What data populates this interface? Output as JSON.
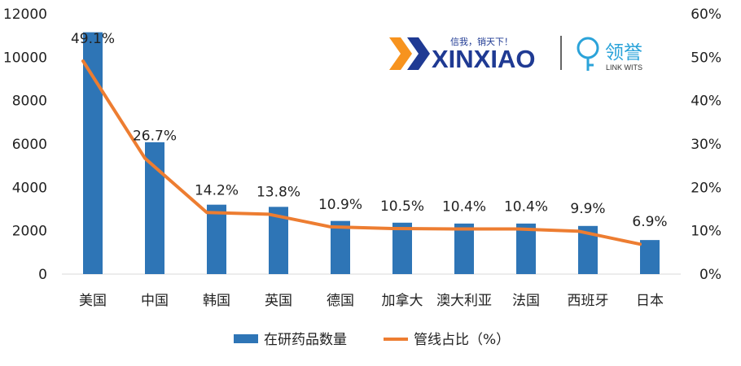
{
  "chart_data": {
    "type": "bar+line",
    "categories": [
      "美国",
      "中国",
      "韩国",
      "英国",
      "德国",
      "加拿大",
      "澳大利亚",
      "法国",
      "西班牙",
      "日本"
    ],
    "series": [
      {
        "name": "在研药品数量",
        "type": "bar",
        "axis": "left",
        "color": "#2E75B6",
        "values": [
          11150,
          6080,
          3200,
          3100,
          2450,
          2370,
          2330,
          2330,
          2220,
          1570
        ]
      },
      {
        "name": "管线占比（%）",
        "type": "line",
        "axis": "right",
        "color": "#ED7D31",
        "values": [
          49.1,
          26.7,
          14.2,
          13.8,
          10.9,
          10.5,
          10.4,
          10.4,
          9.9,
          6.9
        ],
        "data_labels": [
          "49.1%",
          "26.7%",
          "14.2%",
          "13.8%",
          "10.9%",
          "10.5%",
          "10.4%",
          "10.4%",
          "9.9%",
          "6.9%"
        ]
      }
    ],
    "y_left": {
      "ylim": [
        0,
        12000
      ],
      "ticks": [
        0,
        2000,
        4000,
        6000,
        8000,
        10000,
        12000
      ],
      "tick_labels": [
        "0",
        "2000",
        "4000",
        "6000",
        "8000",
        "10000",
        "12000"
      ]
    },
    "y_right": {
      "ylim": [
        0,
        60
      ],
      "ticks": [
        0,
        10,
        20,
        30,
        40,
        50,
        60
      ],
      "tick_labels": [
        "0%",
        "10%",
        "20%",
        "30%",
        "40%",
        "50%",
        "60%"
      ]
    },
    "grid": false,
    "legend_position": "bottom"
  },
  "logos": {
    "xinxiao": {
      "name": "XINXIAO",
      "slogan": "信我，销天下！",
      "color": "#1F3A93",
      "accent": "#F7931E"
    },
    "linkwits": {
      "name": "领誉",
      "subtitle": "LINK WITS",
      "color": "#2BA3D9"
    }
  }
}
